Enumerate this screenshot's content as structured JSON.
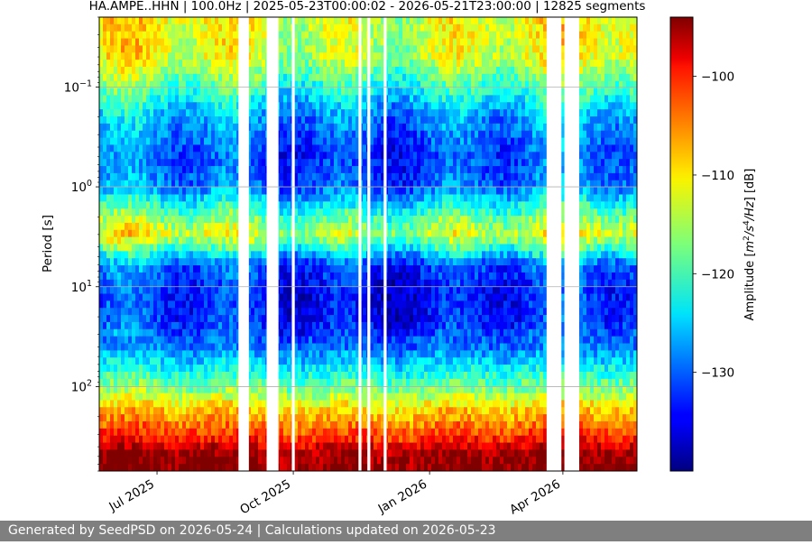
{
  "chart_data": {
    "type": "heatmap",
    "title": "HA.AMPE..HHN | 100.0Hz | 2025-05-23T00:00:02 - 2026-05-21T23:00:00 | 12825 segments",
    "ylabel": "Period [s]",
    "y_scale": "log",
    "y_inverted": true,
    "ylim": [
      0.02,
      700
    ],
    "xlim": [
      "2025-05-23",
      "2026-05-21"
    ],
    "x_ticks": [
      {
        "date": "2025-07-01",
        "label": "Jul 2025"
      },
      {
        "date": "2025-10-01",
        "label": "Oct 2025"
      },
      {
        "date": "2026-01-01",
        "label": "Jan 2026"
      },
      {
        "date": "2026-04-01",
        "label": "Apr 2026"
      }
    ],
    "y_ticks": [
      {
        "value": 0.1,
        "base": "10",
        "exp": "−1"
      },
      {
        "value": 1,
        "base": "10",
        "exp": "0"
      },
      {
        "value": 10,
        "base": "10",
        "exp": "1"
      },
      {
        "value": 100,
        "base": "10",
        "exp": "2"
      }
    ],
    "grid": true,
    "colormap": "jet",
    "colorbar": {
      "label": "Amplitude [m²/s⁴/Hz] [dB]",
      "range": [
        -140,
        -94
      ],
      "ticks": [
        -100,
        -110,
        -120,
        -130
      ]
    },
    "data_gaps": [
      [
        "2025-08-25",
        "2025-09-01"
      ],
      [
        "2025-09-13",
        "2025-09-21"
      ],
      [
        "2025-09-30",
        "2025-10-02"
      ],
      [
        "2025-11-14",
        "2025-11-16"
      ],
      [
        "2025-11-20",
        "2025-11-22"
      ],
      [
        "2025-12-01",
        "2025-12-03"
      ],
      [
        "2026-03-21",
        "2026-03-31"
      ],
      [
        "2026-04-02",
        "2026-04-12"
      ]
    ],
    "spectrum_profile": [
      {
        "period": 0.02,
        "db": -112
      },
      {
        "period": 0.05,
        "db": -113
      },
      {
        "period": 0.1,
        "db": -120
      },
      {
        "period": 0.2,
        "db": -127
      },
      {
        "period": 0.5,
        "db": -131
      },
      {
        "period": 1,
        "db": -129
      },
      {
        "period": 2,
        "db": -118
      },
      {
        "period": 3,
        "db": -113
      },
      {
        "period": 4,
        "db": -120
      },
      {
        "period": 6,
        "db": -130
      },
      {
        "period": 10,
        "db": -133
      },
      {
        "period": 20,
        "db": -133
      },
      {
        "period": 40,
        "db": -129
      },
      {
        "period": 70,
        "db": -122
      },
      {
        "period": 120,
        "db": -115
      },
      {
        "period": 170,
        "db": -109
      },
      {
        "period": 230,
        "db": -106
      },
      {
        "period": 330,
        "db": -101
      },
      {
        "period": 470,
        "db": -95
      },
      {
        "period": 700,
        "db": -94
      }
    ]
  },
  "footer": {
    "text": "Generated by SeedPSD on 2026-05-24 | Calculations updated on 2026-05-23"
  }
}
